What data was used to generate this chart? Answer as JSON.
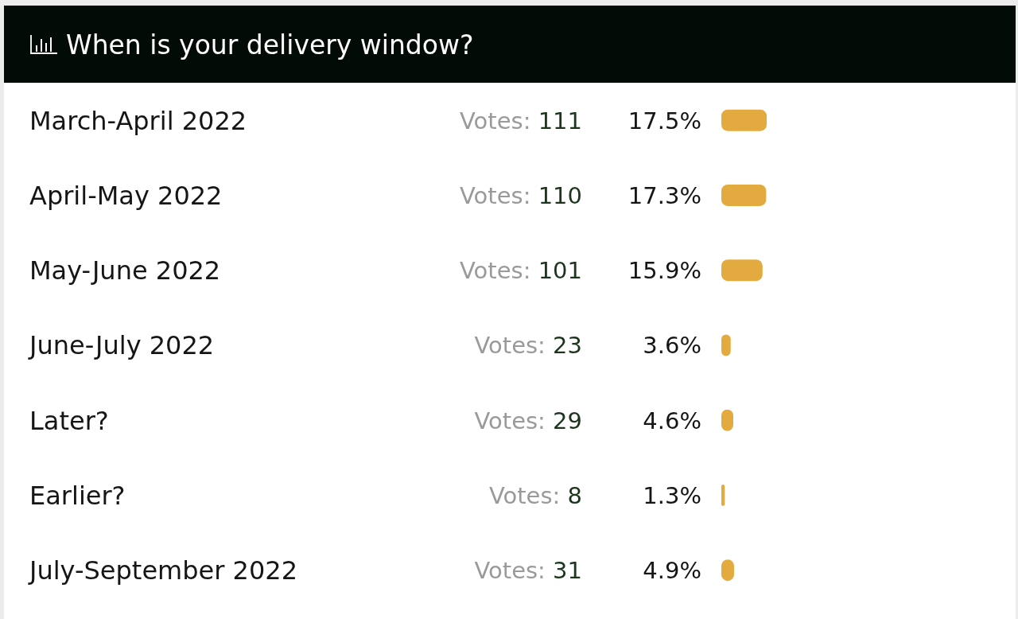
{
  "chart_data": {
    "type": "bar",
    "orientation": "horizontal",
    "title": "When is your delivery window?",
    "categories": [
      "March-April 2022",
      "April-May 2022",
      "May-June 2022",
      "June-July 2022",
      "Later?",
      "Earlier?",
      "July-September 2022"
    ],
    "values": [
      17.5,
      17.3,
      15.9,
      3.6,
      4.6,
      1.3,
      4.9
    ],
    "value_labels": [
      "17.5%",
      "17.3%",
      "15.9%",
      "3.6%",
      "4.6%",
      "1.3%",
      "4.9%"
    ],
    "color": "#e3aa3f",
    "tick_labels": "y",
    "annotations": [
      "Votes: 111",
      "Votes: 110",
      "Votes: 101",
      "Votes: 23",
      "Votes: 29",
      "Votes: 8",
      "Votes: 31"
    ]
  }
}
